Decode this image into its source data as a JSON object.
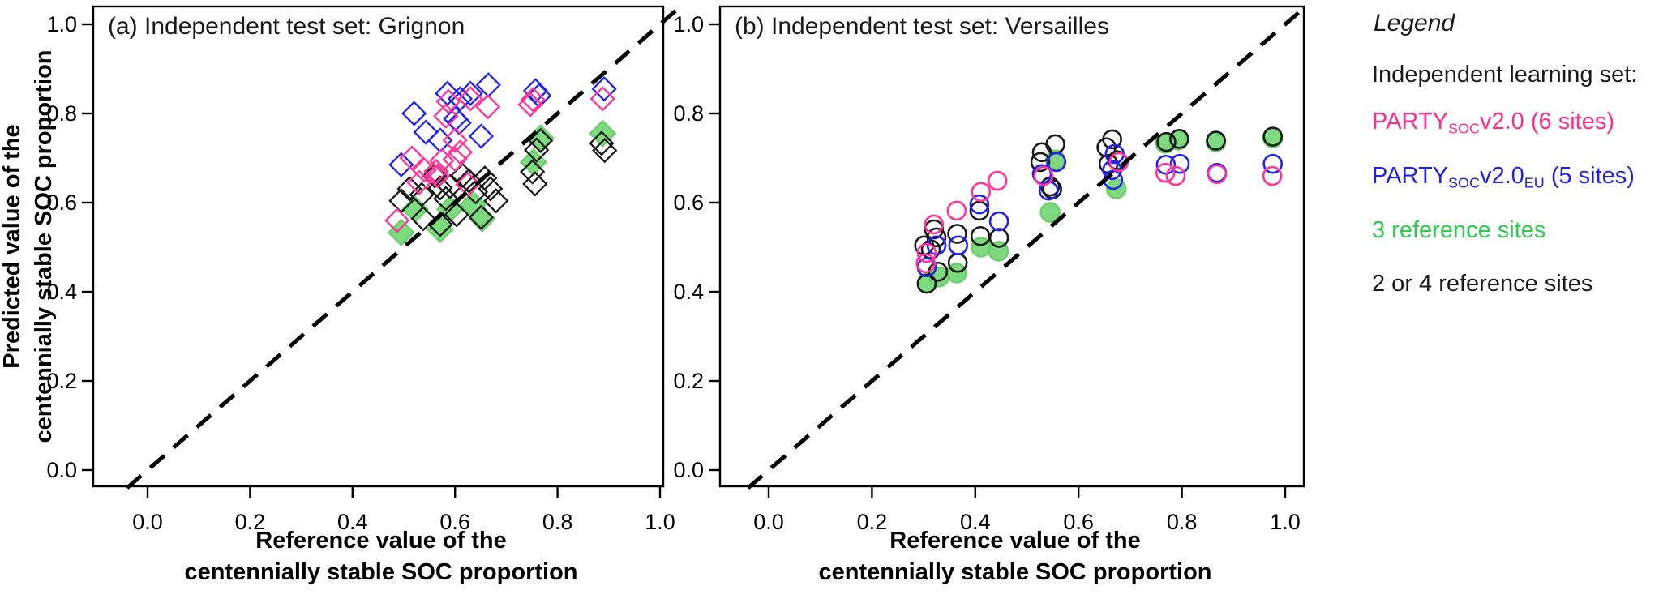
{
  "chart_data": [
    {
      "type": "scatter",
      "panel": "a",
      "title": "(a) Independent test set: Grignon",
      "xlabel_line1": "Reference value of the",
      "xlabel_line2": "centennially stable SOC proportion",
      "ylabel_line1": "Predicted value of the",
      "ylabel_line2": "centennially stable SOC proportion",
      "marker": "diamond",
      "xlim": [
        0,
        1
      ],
      "ylim": [
        0,
        1
      ],
      "grid": false,
      "identity_line": "dashed 1:1 line",
      "x_tick_values": [
        0.0,
        0.2,
        0.4,
        0.6,
        0.8,
        1.0
      ],
      "x_tick_labels": [
        "0.0",
        "0.2",
        "0.4",
        "0.6",
        "0.8",
        "1.0"
      ],
      "y_tick_values": [
        0.0,
        0.2,
        0.4,
        0.6,
        0.8,
        1.0
      ],
      "y_tick_labels": [
        "0.0",
        "0.2",
        "0.4",
        "0.6",
        "0.8",
        "1.0"
      ],
      "series": [
        {
          "name": "PARTYSOCv2.0 (6 sites)",
          "color": "#FF3399",
          "fill": "none",
          "points": [
            [
              0.587,
              0.827
            ],
            [
              0.63,
              0.833
            ],
            [
              0.664,
              0.815
            ],
            [
              0.582,
              0.794
            ],
            [
              0.6,
              0.74
            ],
            [
              0.61,
              0.713
            ],
            [
              0.574,
              0.694
            ],
            [
              0.6,
              0.697
            ],
            [
              0.516,
              0.7
            ],
            [
              0.54,
              0.673
            ],
            [
              0.563,
              0.67
            ],
            [
              0.53,
              0.645
            ],
            [
              0.566,
              0.66
            ],
            [
              0.625,
              0.641
            ],
            [
              0.487,
              0.56
            ],
            [
              0.752,
              0.831
            ],
            [
              0.747,
              0.82
            ],
            [
              0.888,
              0.833
            ]
          ]
        },
        {
          "name": "PARTYSOCv2.0EU (5 sites)",
          "color": "#2222EE",
          "fill": "none",
          "points": [
            [
              0.52,
              0.8
            ],
            [
              0.585,
              0.845
            ],
            [
              0.63,
              0.845
            ],
            [
              0.61,
              0.833
            ],
            [
              0.665,
              0.864
            ],
            [
              0.601,
              0.788
            ],
            [
              0.608,
              0.779
            ],
            [
              0.543,
              0.758
            ],
            [
              0.571,
              0.74
            ],
            [
              0.651,
              0.749
            ],
            [
              0.495,
              0.685
            ],
            [
              0.757,
              0.851
            ],
            [
              0.764,
              0.84
            ],
            [
              0.891,
              0.855
            ]
          ]
        },
        {
          "name": "3 reference sites",
          "color": "#6ECF6E",
          "fill": "#7EDA7E",
          "points": [
            [
              0.522,
              0.585
            ],
            [
              0.495,
              0.533
            ],
            [
              0.571,
              0.54
            ],
            [
              0.59,
              0.585
            ],
            [
              0.635,
              0.596
            ],
            [
              0.653,
              0.564
            ],
            [
              0.767,
              0.745
            ],
            [
              0.753,
              0.691
            ],
            [
              0.888,
              0.755
            ]
          ]
        },
        {
          "name": "2 or 4 reference sites",
          "color": "#1A1A1A",
          "fill": "none",
          "points": [
            [
              0.511,
              0.631
            ],
            [
              0.495,
              0.604
            ],
            [
              0.535,
              0.618
            ],
            [
              0.56,
              0.66
            ],
            [
              0.571,
              0.633
            ],
            [
              0.582,
              0.609
            ],
            [
              0.59,
              0.636
            ],
            [
              0.615,
              0.661
            ],
            [
              0.627,
              0.649
            ],
            [
              0.64,
              0.624
            ],
            [
              0.658,
              0.655
            ],
            [
              0.669,
              0.631
            ],
            [
              0.68,
              0.604
            ],
            [
              0.538,
              0.564
            ],
            [
              0.571,
              0.551
            ],
            [
              0.603,
              0.573
            ],
            [
              0.651,
              0.567
            ],
            [
              0.759,
              0.718
            ],
            [
              0.767,
              0.739
            ],
            [
              0.751,
              0.669
            ],
            [
              0.756,
              0.642
            ],
            [
              0.886,
              0.733
            ],
            [
              0.892,
              0.717
            ]
          ]
        }
      ]
    },
    {
      "type": "scatter",
      "panel": "b",
      "title": "(b) Independent test set: Versailles",
      "xlabel_line1": "Reference value of the",
      "xlabel_line2": "centennially stable SOC proportion",
      "marker": "circle",
      "xlim": [
        0,
        1
      ],
      "ylim": [
        0,
        1
      ],
      "grid": false,
      "identity_line": "dashed 1:1 line",
      "x_tick_values": [
        0.0,
        0.2,
        0.4,
        0.6,
        0.8,
        1.0
      ],
      "x_tick_labels": [
        "0.0",
        "0.2",
        "0.4",
        "0.6",
        "0.8",
        "1.0"
      ],
      "y_tick_values": [
        0.0,
        0.2,
        0.4,
        0.6,
        0.8,
        1.0
      ],
      "y_tick_labels": [
        "0.0",
        "0.2",
        "0.4",
        "0.6",
        "0.8",
        "1.0"
      ],
      "series": [
        {
          "name": "PARTYSOCv2.0 (6 sites)",
          "color": "#FF3399",
          "fill": "none",
          "points": [
            [
              0.32,
              0.551
            ],
            [
              0.364,
              0.582
            ],
            [
              0.306,
              0.487
            ],
            [
              0.304,
              0.464
            ],
            [
              0.411,
              0.624
            ],
            [
              0.443,
              0.649
            ],
            [
              0.532,
              0.66
            ],
            [
              0.678,
              0.691
            ],
            [
              0.768,
              0.667
            ],
            [
              0.788,
              0.66
            ],
            [
              0.868,
              0.664
            ],
            [
              0.975,
              0.66
            ]
          ]
        },
        {
          "name": "PARTYSOCv2.0EU (5 sites)",
          "color": "#2222EE",
          "fill": "none",
          "points": [
            [
              0.325,
              0.504
            ],
            [
              0.306,
              0.455
            ],
            [
              0.367,
              0.504
            ],
            [
              0.408,
              0.596
            ],
            [
              0.446,
              0.558
            ],
            [
              0.529,
              0.664
            ],
            [
              0.557,
              0.691
            ],
            [
              0.542,
              0.627
            ],
            [
              0.67,
              0.709
            ],
            [
              0.665,
              0.673
            ],
            [
              0.667,
              0.651
            ],
            [
              0.769,
              0.685
            ],
            [
              0.796,
              0.687
            ],
            [
              0.868,
              0.667
            ],
            [
              0.976,
              0.687
            ]
          ]
        },
        {
          "name": "3 reference sites",
          "color": "#6ECF6E",
          "fill": "#7EDA7E",
          "points": [
            [
              0.307,
              0.42
            ],
            [
              0.33,
              0.433
            ],
            [
              0.364,
              0.442
            ],
            [
              0.411,
              0.5
            ],
            [
              0.445,
              0.491
            ],
            [
              0.545,
              0.578
            ],
            [
              0.555,
              0.696
            ],
            [
              0.673,
              0.631
            ],
            [
              0.768,
              0.733
            ],
            [
              0.793,
              0.74
            ],
            [
              0.866,
              0.736
            ],
            [
              0.976,
              0.745
            ]
          ]
        },
        {
          "name": "2 or 4 reference sites",
          "color": "#1A1A1A",
          "fill": "none",
          "points": [
            [
              0.32,
              0.54
            ],
            [
              0.325,
              0.522
            ],
            [
              0.301,
              0.504
            ],
            [
              0.314,
              0.495
            ],
            [
              0.328,
              0.445
            ],
            [
              0.306,
              0.418
            ],
            [
              0.365,
              0.53
            ],
            [
              0.366,
              0.465
            ],
            [
              0.408,
              0.582
            ],
            [
              0.41,
              0.525
            ],
            [
              0.446,
              0.521
            ],
            [
              0.529,
              0.713
            ],
            [
              0.555,
              0.731
            ],
            [
              0.526,
              0.691
            ],
            [
              0.545,
              0.636
            ],
            [
              0.549,
              0.63
            ],
            [
              0.665,
              0.742
            ],
            [
              0.654,
              0.724
            ],
            [
              0.675,
              0.695
            ],
            [
              0.658,
              0.687
            ],
            [
              0.77,
              0.736
            ],
            [
              0.795,
              0.743
            ],
            [
              0.866,
              0.739
            ],
            [
              0.976,
              0.748
            ]
          ]
        }
      ]
    }
  ],
  "legend": {
    "title": "Legend",
    "heading": "Independent learning set:",
    "items": [
      {
        "color": "#FF2E8C",
        "parts": [
          {
            "t": "PARTY"
          },
          {
            "t": "SOC",
            "sub": true
          },
          {
            "t": "v2.0"
          },
          {
            "t": " (6 sites)"
          }
        ]
      },
      {
        "color": "#2222DD",
        "parts": [
          {
            "t": "PARTY"
          },
          {
            "t": "SOC",
            "sub": true
          },
          {
            "t": "v2.0"
          },
          {
            "t": "EU",
            "sub": true
          },
          {
            "t": " (5 sites)"
          }
        ]
      },
      {
        "color": "#2FC94F",
        "parts": [
          {
            "t": "3 reference sites"
          }
        ]
      },
      {
        "color": "#1A1A1A",
        "parts": [
          {
            "t": "2 or 4 reference sites"
          }
        ]
      }
    ]
  }
}
